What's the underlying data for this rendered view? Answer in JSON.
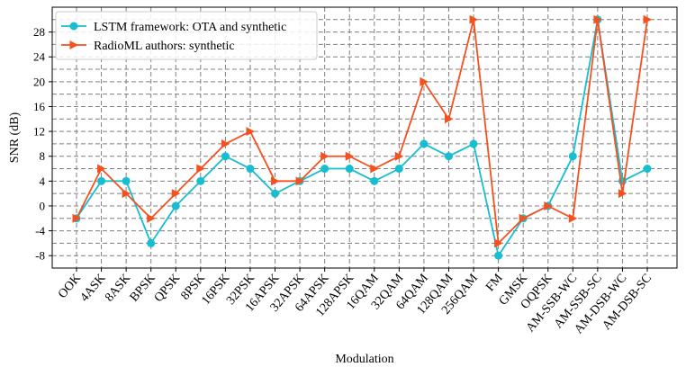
{
  "chart_data": {
    "type": "line",
    "title": "",
    "xlabel": "Modulation",
    "ylabel": "SNR (dB)",
    "ylim": [
      -10,
      32
    ],
    "yticks": [
      -8,
      -4,
      0,
      4,
      8,
      12,
      16,
      20,
      24,
      28
    ],
    "grid": true,
    "legend_position": "upper-left",
    "categories": [
      "OOK",
      "4ASK",
      "8ASK",
      "BPSK",
      "QPSK",
      "8PSK",
      "16PSK",
      "32PSK",
      "16APSK",
      "32APSK",
      "64APSK",
      "128APSK",
      "16QAM",
      "32QAM",
      "64QAM",
      "128QAM",
      "256QAM",
      "FM",
      "GMSK",
      "OQPSK",
      "AM-SSB-WC",
      "AM-SSB-SC",
      "AM-DSB-WC",
      "AM-DSB-SC"
    ],
    "series": [
      {
        "name": "LSTM framework: OTA and synthetic",
        "color": "#17becf",
        "marker": "circle",
        "values": [
          -2,
          4,
          4,
          -6,
          0,
          4,
          8,
          6,
          2,
          4,
          6,
          6,
          4,
          6,
          10,
          8,
          10,
          -8,
          -2,
          0,
          8,
          30,
          4,
          6
        ]
      },
      {
        "name": "RadioML authors: synthetic",
        "color": "#f4511e",
        "marker": "triangle-right",
        "values": [
          -2,
          6,
          2,
          -2,
          2,
          6,
          10,
          12,
          4,
          4,
          8,
          8,
          6,
          8,
          20,
          14,
          30,
          -6,
          -2,
          0,
          -2,
          30,
          2,
          30
        ]
      }
    ]
  }
}
